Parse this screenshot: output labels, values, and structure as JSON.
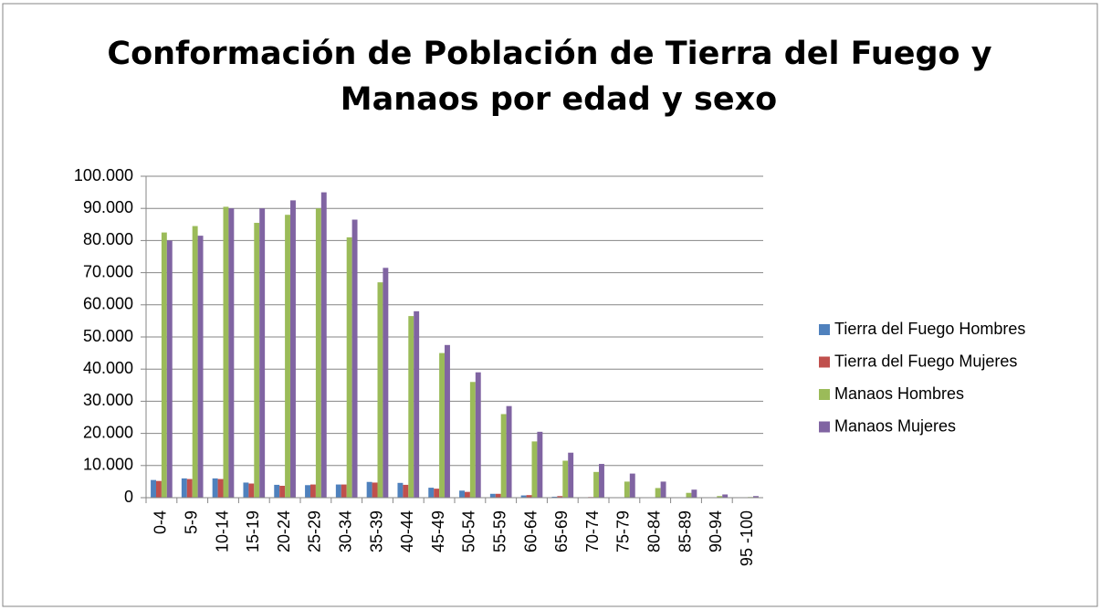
{
  "chart_data": {
    "type": "bar",
    "title": [
      "Conformación de Población de Tierra del Fuego y",
      "Manaos por edad y sexo"
    ],
    "categories": [
      "0-4",
      "5-9",
      "10-14",
      "15-19",
      "20-24",
      "25-29",
      "30-34",
      "35-39",
      "40-44",
      "45-49",
      "50-54",
      "55-59",
      "60-64",
      "65-69",
      "70-74",
      "75-79",
      "80-84",
      "85-89",
      "90-94",
      "95 -100"
    ],
    "series": [
      {
        "name": "Tierra del Fuego Hombres",
        "color": "#4f81bd",
        "values": [
          5500,
          6000,
          6000,
          4700,
          4000,
          3900,
          4100,
          4900,
          4600,
          3100,
          2200,
          1200,
          700,
          300,
          100,
          50,
          30,
          10,
          0,
          0
        ]
      },
      {
        "name": "Tierra del Fuego Mujeres",
        "color": "#c0504d",
        "values": [
          5200,
          5800,
          5800,
          4400,
          3700,
          4100,
          4100,
          4700,
          4000,
          2800,
          1800,
          1200,
          800,
          500,
          200,
          100,
          50,
          20,
          10,
          0
        ]
      },
      {
        "name": "Manaos Hombres",
        "color": "#9bbb59",
        "values": [
          82500,
          84500,
          90500,
          85500,
          88000,
          90000,
          81000,
          67000,
          56500,
          45000,
          36000,
          26000,
          17500,
          11500,
          8000,
          5000,
          3000,
          1500,
          500,
          200
        ]
      },
      {
        "name": "Manaos Mujeres",
        "color": "#8064a2",
        "values": [
          80000,
          81500,
          90000,
          90000,
          92500,
          95000,
          86500,
          71500,
          58000,
          47500,
          39000,
          28500,
          20500,
          14000,
          10500,
          7500,
          5000,
          2500,
          1000,
          500
        ]
      }
    ],
    "ylim": [
      0,
      100000
    ],
    "yticks": [
      0,
      {
        "value": 10000,
        "label": "10.000"
      },
      {
        "value": 20000,
        "label": "20.000"
      },
      {
        "value": 30000,
        "label": "30.000"
      },
      {
        "value": 40000,
        "label": "40.000"
      },
      {
        "value": 50000,
        "label": "50.000"
      },
      {
        "value": 60000,
        "label": "60.000"
      },
      {
        "value": 70000,
        "label": "70.000"
      },
      {
        "value": 80000,
        "label": "80.000"
      },
      {
        "value": 90000,
        "label": "90.000"
      },
      {
        "value": 100000,
        "label": "100.000"
      }
    ],
    "grid": true,
    "legend": "right"
  }
}
